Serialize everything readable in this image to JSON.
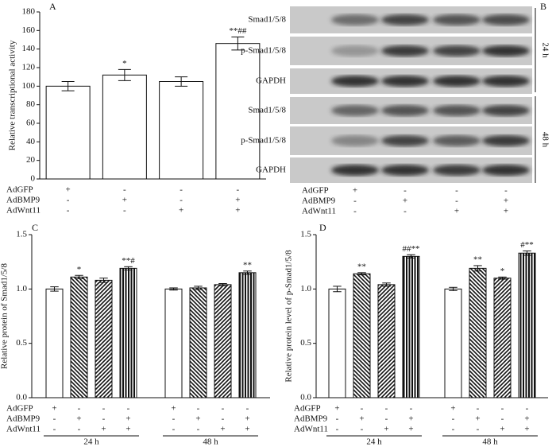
{
  "chart_data": [
    {
      "type": "bar",
      "panel": "A",
      "ylabel": "Relative transcriptional activity",
      "values": [
        100,
        112,
        105,
        146
      ],
      "errors": [
        5,
        6,
        5,
        7
      ],
      "annotations": [
        null,
        "*",
        null,
        "**##"
      ],
      "ylim": [
        0,
        180
      ],
      "yticks": [
        0,
        20,
        40,
        60,
        80,
        100,
        120,
        140,
        160,
        180
      ],
      "conditions": [
        {
          "label": "AdGFP",
          "signs": [
            "+",
            "-",
            "-",
            "-"
          ]
        },
        {
          "label": "AdBMP9",
          "signs": [
            "-",
            "+",
            "-",
            "+"
          ]
        },
        {
          "label": "AdWnt11",
          "signs": [
            "-",
            "-",
            "+",
            "+"
          ]
        }
      ]
    },
    {
      "type": "bar",
      "panel": "C",
      "ylabel": "Relative protein of Smad1/5/8",
      "categories": [
        "24 h",
        "48 h"
      ],
      "series": [
        {
          "pattern": "none",
          "values": [
            1.0,
            1.0
          ],
          "errors": [
            0.02,
            0.01
          ],
          "annotations": [
            null,
            null
          ]
        },
        {
          "pattern": "back",
          "values": [
            1.11,
            1.01
          ],
          "errors": [
            0.015,
            0.015
          ],
          "annotations": [
            "*",
            null
          ]
        },
        {
          "pattern": "fwd",
          "values": [
            1.08,
            1.04
          ],
          "errors": [
            0.02,
            0.01
          ],
          "annotations": [
            null,
            null
          ]
        },
        {
          "pattern": "vert",
          "values": [
            1.19,
            1.15
          ],
          "errors": [
            0.015,
            0.015
          ],
          "annotations": [
            "**#",
            "**"
          ]
        }
      ],
      "ylim": [
        0,
        1.5
      ],
      "yticks": [
        {
          "value": 0,
          "label": "0.0"
        },
        0.5,
        {
          "value": 1,
          "label": "1.0"
        },
        1.5
      ],
      "conditions": [
        {
          "label": "AdGFP",
          "signs": [
            "+",
            "-",
            "-",
            "-",
            "+",
            "-",
            "-",
            "-"
          ]
        },
        {
          "label": "AdBMP9",
          "signs": [
            "-",
            "+",
            "-",
            "+",
            "-",
            "+",
            "-",
            "+"
          ]
        },
        {
          "label": "AdWnt11",
          "signs": [
            "-",
            "-",
            "+",
            "+",
            "-",
            "-",
            "+",
            "+"
          ]
        }
      ]
    },
    {
      "type": "bar",
      "panel": "D",
      "ylabel": "Relative protein level of p-Smad1/5/8",
      "categories": [
        "24 h",
        "48 h"
      ],
      "series": [
        {
          "pattern": "none",
          "values": [
            1.0,
            1.0
          ],
          "errors": [
            0.025,
            0.015
          ],
          "annotations": [
            null,
            null
          ]
        },
        {
          "pattern": "back",
          "values": [
            1.14,
            1.19
          ],
          "errors": [
            0.01,
            0.025
          ],
          "annotations": [
            "**",
            "**"
          ]
        },
        {
          "pattern": "fwd",
          "values": [
            1.04,
            1.1
          ],
          "errors": [
            0.015,
            0.01
          ],
          "annotations": [
            null,
            "*"
          ]
        },
        {
          "pattern": "vert",
          "values": [
            1.3,
            1.33
          ],
          "errors": [
            0.015,
            0.02
          ],
          "annotations": [
            "##**",
            "#**"
          ]
        }
      ],
      "ylim": [
        0,
        1.5
      ],
      "yticks": [
        {
          "value": 0,
          "label": "0.0"
        },
        0.5,
        {
          "value": 1,
          "label": "1.0"
        },
        1.5
      ],
      "conditions": [
        {
          "label": "AdGFP",
          "signs": [
            "+",
            "-",
            "-",
            "-",
            "+",
            "-",
            "-",
            "-"
          ]
        },
        {
          "label": "AdBMP9",
          "signs": [
            "-",
            "+",
            "-",
            "+",
            "-",
            "+",
            "-",
            "+"
          ]
        },
        {
          "label": "AdWnt11",
          "signs": [
            "-",
            "-",
            "+",
            "+",
            "-",
            "-",
            "+",
            "+"
          ]
        }
      ]
    }
  ],
  "blot": {
    "panel": "B",
    "rows": [
      "Smad1/5/8",
      "p-Smad1/5/8",
      "GAPDH",
      "Smad1/5/8",
      "p-Smad1/5/8",
      "GAPDH"
    ],
    "times": [
      "24 h",
      "48 h"
    ],
    "conditions": [
      {
        "label": "AdGFP",
        "signs": [
          "+",
          "-",
          "-",
          "-"
        ]
      },
      {
        "label": "AdBMP9",
        "signs": [
          "-",
          "+",
          "-",
          "+"
        ]
      },
      {
        "label": "AdWnt11",
        "signs": [
          "-",
          "-",
          "+",
          "+"
        ]
      }
    ]
  }
}
